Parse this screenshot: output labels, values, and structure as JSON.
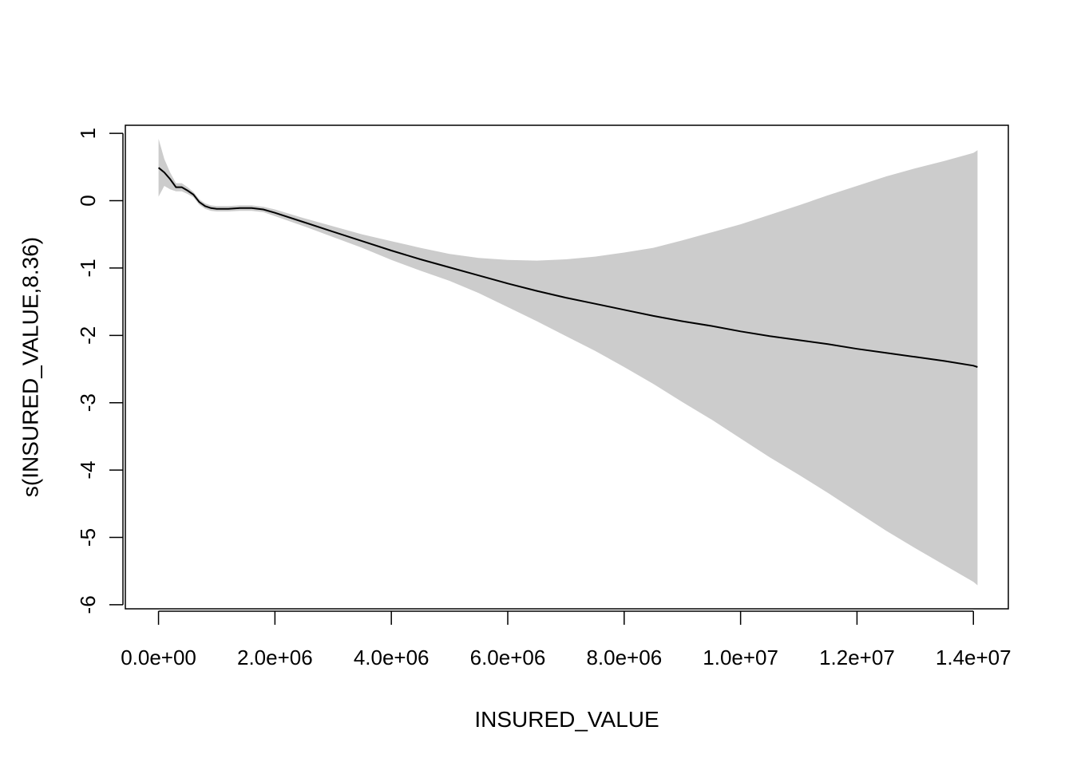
{
  "chart_data": {
    "type": "line",
    "xlabel": "INSURED_VALUE",
    "ylabel": "s(INSURED_VALUE,8.36)",
    "xlim": [
      -570000,
      14600000
    ],
    "ylim": [
      -6.06,
      1.12
    ],
    "x_ticks": [
      0,
      2000000,
      4000000,
      6000000,
      8000000,
      10000000,
      12000000,
      14000000
    ],
    "x_tick_labels": [
      "0.0e+00",
      "2.0e+06",
      "4.0e+06",
      "6.0e+06",
      "8.0e+06",
      "1.0e+07",
      "1.2e+07",
      "1.4e+07"
    ],
    "y_ticks": [
      -6,
      -5,
      -4,
      -3,
      -2,
      -1,
      0,
      1
    ],
    "y_tick_labels": [
      "-6",
      "-5",
      "-4",
      "-3",
      "-2",
      "-1",
      "0",
      "1"
    ],
    "grid": false,
    "colors": {
      "line": "#000000",
      "band": "#cccccc",
      "frame": "#000000"
    },
    "series": [
      {
        "kind": "line",
        "x": [
          0,
          100000,
          200000,
          300000,
          400000,
          500000,
          600000,
          700000,
          800000,
          900000,
          1000000,
          1200000,
          1400000,
          1600000,
          1800000,
          2000000,
          2500000,
          3000000,
          3500000,
          4000000,
          4500000,
          5000000,
          5500000,
          6000000,
          6500000,
          7000000,
          7500000,
          8000000,
          8500000,
          9000000,
          9500000,
          10000000,
          10500000,
          11000000,
          11500000,
          12000000,
          12500000,
          13000000,
          13500000,
          14000000,
          14070000
        ],
        "y": [
          0.49,
          0.42,
          0.32,
          0.2,
          0.2,
          0.15,
          0.09,
          -0.02,
          -0.08,
          -0.11,
          -0.12,
          -0.12,
          -0.11,
          -0.11,
          -0.13,
          -0.18,
          -0.32,
          -0.46,
          -0.6,
          -0.74,
          -0.87,
          -0.99,
          -1.11,
          -1.23,
          -1.34,
          -1.44,
          -1.53,
          -1.62,
          -1.71,
          -1.79,
          -1.86,
          -1.94,
          -2.01,
          -2.07,
          -2.13,
          -2.2,
          -2.26,
          -2.32,
          -2.38,
          -2.45,
          -2.47
        ]
      },
      {
        "kind": "band",
        "x": [
          0,
          100000,
          200000,
          300000,
          400000,
          500000,
          600000,
          700000,
          800000,
          900000,
          1000000,
          1200000,
          1400000,
          1600000,
          1800000,
          2000000,
          2500000,
          3000000,
          3500000,
          4000000,
          4500000,
          5000000,
          5500000,
          6000000,
          6500000,
          7000000,
          7500000,
          8000000,
          8500000,
          9000000,
          9500000,
          10000000,
          10500000,
          11000000,
          11500000,
          12000000,
          12500000,
          13000000,
          13500000,
          14000000,
          14070000
        ],
        "upper": [
          0.92,
          0.62,
          0.42,
          0.26,
          0.26,
          0.2,
          0.13,
          0.02,
          -0.04,
          -0.07,
          -0.08,
          -0.08,
          -0.07,
          -0.07,
          -0.09,
          -0.13,
          -0.26,
          -0.38,
          -0.5,
          -0.6,
          -0.7,
          -0.79,
          -0.85,
          -0.88,
          -0.89,
          -0.87,
          -0.83,
          -0.77,
          -0.7,
          -0.59,
          -0.47,
          -0.35,
          -0.21,
          -0.07,
          0.08,
          0.22,
          0.36,
          0.48,
          0.59,
          0.71,
          0.75
        ],
        "lower": [
          0.06,
          0.22,
          0.17,
          0.14,
          0.14,
          0.1,
          0.05,
          -0.06,
          -0.12,
          -0.15,
          -0.16,
          -0.16,
          -0.15,
          -0.15,
          -0.17,
          -0.23,
          -0.38,
          -0.54,
          -0.7,
          -0.88,
          -1.04,
          -1.19,
          -1.37,
          -1.58,
          -1.79,
          -2.01,
          -2.23,
          -2.47,
          -2.72,
          -2.99,
          -3.25,
          -3.53,
          -3.81,
          -4.07,
          -4.34,
          -4.62,
          -4.9,
          -5.16,
          -5.41,
          -5.66,
          -5.71
        ]
      }
    ]
  }
}
